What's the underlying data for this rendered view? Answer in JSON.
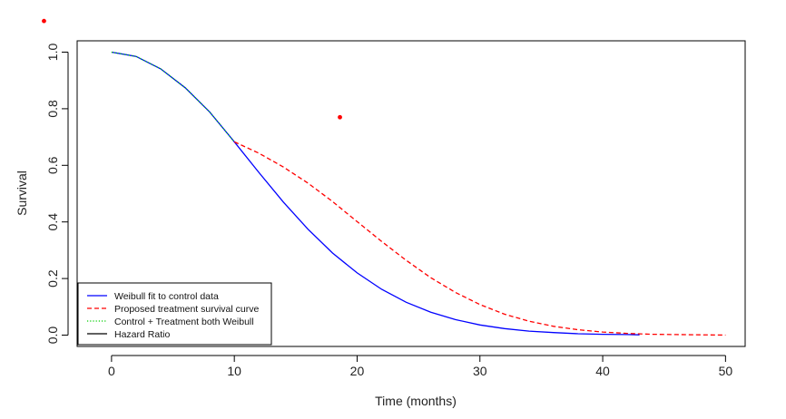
{
  "chart_data": {
    "type": "line",
    "title": "",
    "xlabel": "Time (months)",
    "ylabel": "Survival",
    "xlim": [
      -2.8,
      51.6
    ],
    "ylim": [
      -0.04,
      1.04
    ],
    "x_ticks": [
      0,
      10,
      20,
      30,
      40,
      50
    ],
    "y_ticks": [
      0.0,
      0.2,
      0.4,
      0.6,
      0.8,
      1.0
    ],
    "x_tick_labels": [
      "0",
      "10",
      "20",
      "30",
      "40",
      "50"
    ],
    "y_tick_labels": [
      "0.0",
      "0.2",
      "0.4",
      "0.6",
      "0.8",
      "1.0"
    ],
    "grid": false,
    "legend_position": "bottom-left",
    "series": [
      {
        "name": "Weibull fit to control data",
        "color": "#0000ff",
        "style": "solid",
        "x": [
          0,
          2,
          4,
          6,
          8,
          10,
          12,
          14,
          16,
          18,
          20,
          22,
          24,
          26,
          28,
          30,
          32,
          34,
          36,
          38,
          40,
          42,
          43
        ],
        "y": [
          1.0,
          0.985,
          0.941,
          0.874,
          0.788,
          0.683,
          0.575,
          0.47,
          0.374,
          0.29,
          0.22,
          0.162,
          0.116,
          0.081,
          0.055,
          0.036,
          0.023,
          0.014,
          0.009,
          0.005,
          0.003,
          0.002,
          0.001
        ]
      },
      {
        "name": "Proposed treatment survival curve",
        "color": "#ff0000",
        "style": "dashed",
        "x": [
          10,
          12,
          14,
          16,
          18,
          20,
          22,
          24,
          26,
          28,
          30,
          32,
          34,
          36,
          38,
          40,
          42,
          44,
          46,
          48,
          50
        ],
        "y": [
          0.683,
          0.643,
          0.594,
          0.537,
          0.472,
          0.401,
          0.331,
          0.264,
          0.203,
          0.151,
          0.108,
          0.074,
          0.049,
          0.031,
          0.019,
          0.011,
          0.006,
          0.003,
          0.002,
          0.001,
          0.0
        ]
      },
      {
        "name": "Control + Treatment both Weibull",
        "color": "#00cd00",
        "style": "dotted",
        "x": [
          0,
          2,
          4,
          6,
          8,
          10
        ],
        "y": [
          1.0,
          0.985,
          0.941,
          0.874,
          0.788,
          0.683
        ]
      },
      {
        "name": "Hazard Ratio",
        "color": "#000000",
        "style": "solid",
        "x": [],
        "y": []
      }
    ],
    "points": [
      {
        "x": 18.6,
        "y": 0.77,
        "color": "#ff0000"
      },
      {
        "x": -5.5,
        "y": 1.11,
        "color": "#ff0000"
      }
    ]
  }
}
